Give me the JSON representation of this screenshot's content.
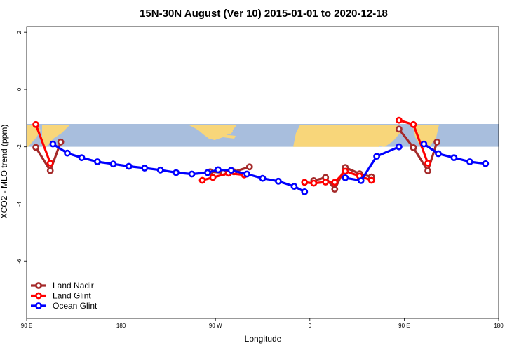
{
  "chart_data": {
    "type": "line",
    "title": "15N-30N August (Ver 10)   2015-01-01 to 2020-12-18",
    "xlabel": "Longitude",
    "ylabel": "XCO2 - MLO trend (ppm)",
    "xlim": [
      90,
      450
    ],
    "ylim": [
      -8,
      2.2
    ],
    "x_ticks": [
      {
        "value": 90,
        "label": "90 E"
      },
      {
        "value": 162,
        "label": "180"
      },
      {
        "value": 234,
        "label": "90 W"
      },
      {
        "value": 306,
        "label": "0"
      },
      {
        "value": 378,
        "label": "90 E"
      },
      {
        "value": 450,
        "label": "180"
      }
    ],
    "y_ticks": [
      {
        "value": 2,
        "label": "2"
      },
      {
        "value": 0,
        "label": "0"
      },
      {
        "value": -2,
        "label": "-2"
      },
      {
        "value": -4,
        "label": "-4"
      },
      {
        "value": -6,
        "label": "-6"
      }
    ],
    "map_band": {
      "y_top": -1.2,
      "y_bottom": -2.0,
      "ocean_color": "#a8bedd",
      "land_color": "#f8d67a"
    },
    "legend_position": "bottom-left",
    "series": [
      {
        "name": "Land Nadir",
        "color": "#a52a2a",
        "segments": [
          [
            [
              97,
              -2.02
            ],
            [
              108,
              -2.83
            ],
            [
              116,
              -1.83
            ]
          ],
          [
            [
              230,
              -2.87
            ],
            [
              240,
              -2.9
            ],
            [
              248,
              -2.87
            ],
            [
              260,
              -2.7
            ]
          ],
          [
            [
              309,
              -3.18
            ],
            [
              318,
              -3.07
            ],
            [
              325,
              -3.48
            ],
            [
              333,
              -2.72
            ],
            [
              344,
              -2.94
            ],
            [
              353,
              -3.05
            ]
          ],
          [
            [
              374,
              -1.38
            ],
            [
              385,
              -2.03
            ],
            [
              396,
              -2.84
            ],
            [
              403,
              -1.83
            ]
          ]
        ]
      },
      {
        "name": "Land Glint",
        "color": "#ff0000",
        "segments": [
          [
            [
              97,
              -1.22
            ],
            [
              108,
              -2.57
            ]
          ],
          [
            [
              224,
              -3.17
            ],
            [
              232,
              -3.07
            ],
            [
              244,
              -2.92
            ],
            [
              256,
              -2.98
            ]
          ],
          [
            [
              302,
              -3.24
            ],
            [
              309,
              -3.27
            ],
            [
              318,
              -3.23
            ],
            [
              325,
              -3.24
            ],
            [
              333,
              -2.85
            ],
            [
              344,
              -3.02
            ],
            [
              353,
              -3.17
            ]
          ],
          [
            [
              374,
              -1.07
            ],
            [
              385,
              -1.22
            ],
            [
              396,
              -2.57
            ]
          ]
        ]
      },
      {
        "name": "Ocean Glint",
        "color": "#0000ff",
        "segments": [
          [
            [
              110,
              -1.9
            ],
            [
              121,
              -2.22
            ],
            [
              132,
              -2.38
            ],
            [
              144,
              -2.52
            ],
            [
              156,
              -2.6
            ],
            [
              168,
              -2.68
            ],
            [
              180,
              -2.74
            ],
            [
              192,
              -2.81
            ],
            [
              204,
              -2.9
            ],
            [
              216,
              -2.95
            ],
            [
              228,
              -2.9
            ],
            [
              236,
              -2.8
            ],
            [
              246,
              -2.82
            ],
            [
              258,
              -2.95
            ],
            [
              270,
              -3.1
            ],
            [
              282,
              -3.2
            ],
            [
              294,
              -3.38
            ],
            [
              302,
              -3.57
            ]
          ],
          [
            [
              333,
              -3.08
            ],
            [
              345,
              -3.18
            ],
            [
              357,
              -2.33
            ],
            [
              374,
              -2.0
            ]
          ],
          [
            [
              393,
              -1.9
            ],
            [
              404,
              -2.24
            ],
            [
              416,
              -2.38
            ],
            [
              428,
              -2.52
            ],
            [
              440,
              -2.59
            ]
          ]
        ]
      }
    ]
  }
}
